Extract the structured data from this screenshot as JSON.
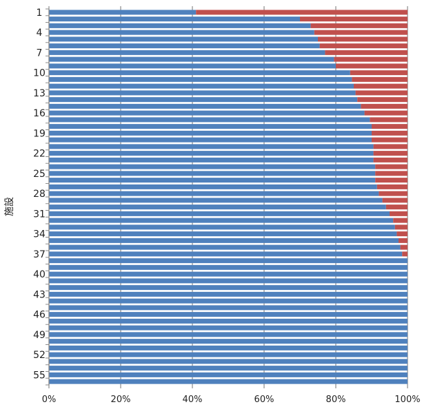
{
  "chart_data": {
    "type": "bar",
    "orientation": "horizontal",
    "stacked": "percent",
    "ylabel": "施設",
    "xlim": [
      0,
      100
    ],
    "x_ticks": [
      "0%",
      "20%",
      "40%",
      "60%",
      "80%",
      "100%"
    ],
    "y_tick_labels": [
      "1",
      "4",
      "7",
      "10",
      "13",
      "16",
      "19",
      "22",
      "25",
      "28",
      "31",
      "34",
      "37",
      "40",
      "43",
      "46",
      "49",
      "52",
      "55"
    ],
    "categories": [
      "1",
      "2",
      "3",
      "4",
      "5",
      "6",
      "7",
      "8",
      "9",
      "10",
      "11",
      "12",
      "13",
      "14",
      "15",
      "16",
      "17",
      "18",
      "19",
      "20",
      "21",
      "22",
      "23",
      "24",
      "25",
      "26",
      "27",
      "28",
      "29",
      "30",
      "31",
      "32",
      "33",
      "34",
      "35",
      "36",
      "37",
      "38",
      "39",
      "40",
      "41",
      "42",
      "43",
      "44",
      "45",
      "46",
      "47",
      "48",
      "49",
      "50",
      "51",
      "52",
      "53",
      "54",
      "55",
      "56"
    ],
    "grid": true,
    "series": [
      {
        "color": "#4f81bd",
        "values": [
          41,
          70,
          73,
          74,
          75,
          75.5,
          77,
          79.5,
          80,
          84,
          84.5,
          85,
          85.5,
          86,
          87,
          88,
          89.5,
          90,
          90,
          90,
          90.5,
          90.5,
          90.5,
          91,
          91,
          91,
          91.5,
          92,
          93,
          94,
          95,
          96,
          96.5,
          97,
          97.5,
          98,
          98.5,
          100,
          100,
          100,
          100,
          100,
          100,
          100,
          100,
          100,
          100,
          100,
          100,
          100,
          100,
          100,
          100,
          100,
          100,
          100
        ]
      },
      {
        "color": "#c0504d",
        "values": [
          59,
          30,
          27,
          26,
          25,
          24.5,
          23,
          20.5,
          20,
          16,
          15.5,
          15,
          14.5,
          14,
          13,
          12,
          10.5,
          10,
          10,
          10,
          9.5,
          9.5,
          9.5,
          9,
          9,
          9,
          8.5,
          8,
          7,
          6,
          5,
          4,
          3.5,
          3,
          2.5,
          2,
          1.5,
          0,
          0,
          0,
          0,
          0,
          0,
          0,
          0,
          0,
          0,
          0,
          0,
          0,
          0,
          0,
          0,
          0,
          0,
          0
        ]
      }
    ]
  }
}
